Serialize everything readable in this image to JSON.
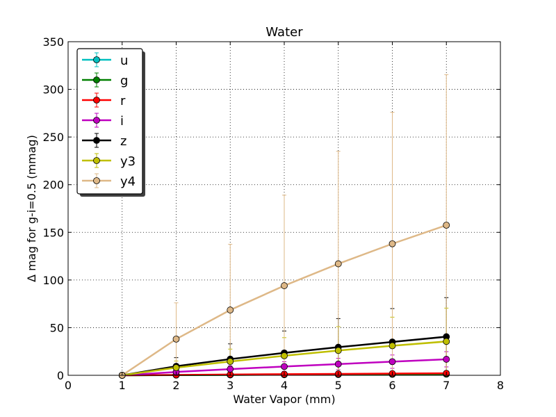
{
  "chart_data": {
    "type": "line",
    "title": "Water",
    "xlabel": "Water Vapor (mm)",
    "ylabel": "Δ mag for g-i=0.5 (mmag)",
    "xlim": [
      0,
      8
    ],
    "ylim": [
      0,
      350
    ],
    "xticks": [
      0,
      1,
      2,
      3,
      4,
      5,
      6,
      7,
      8
    ],
    "yticks": [
      0,
      50,
      100,
      150,
      200,
      250,
      300,
      350
    ],
    "grid": true,
    "legend_position": "top-left",
    "x": [
      1,
      2,
      3,
      4,
      5,
      6,
      7
    ],
    "series": [
      {
        "name": "u",
        "color": "#00bfbf",
        "values": [
          0,
          0.3,
          0.5,
          0.7,
          0.9,
          1.1,
          1.3
        ],
        "err": [
          0,
          0.5,
          0.8,
          1.0,
          1.2,
          1.4,
          1.6
        ]
      },
      {
        "name": "g",
        "color": "#008000",
        "values": [
          0,
          0.2,
          0.4,
          0.6,
          0.8,
          1.0,
          1.2
        ],
        "err": [
          0,
          0.3,
          0.5,
          0.6,
          0.7,
          0.8,
          0.9
        ]
      },
      {
        "name": "r",
        "color": "#ff0000",
        "values": [
          0,
          0.4,
          0.8,
          1.2,
          1.5,
          1.8,
          2.1
        ],
        "err": [
          0,
          0.5,
          0.8,
          1.0,
          1.2,
          1.4,
          1.6
        ]
      },
      {
        "name": "i",
        "color": "#bf00bf",
        "values": [
          0,
          3.5,
          6.5,
          9.2,
          11.8,
          14.3,
          16.8
        ],
        "err": [
          0,
          2,
          3.5,
          5,
          6,
          7,
          8
        ]
      },
      {
        "name": "z",
        "color": "#000000",
        "values": [
          0,
          9.5,
          17,
          23.5,
          29.5,
          35,
          40.5
        ],
        "err": [
          0,
          9,
          16,
          23,
          30,
          35,
          41
        ]
      },
      {
        "name": "y3",
        "color": "#bfbf00",
        "values": [
          0,
          8,
          14.5,
          20.5,
          26,
          31,
          35.5
        ],
        "err": [
          0,
          7,
          13,
          19,
          25,
          30,
          35
        ]
      },
      {
        "name": "y4",
        "color": "#deb887",
        "values": [
          0,
          38,
          68.5,
          94,
          117,
          138,
          157.5
        ],
        "err": [
          0,
          38,
          69,
          95,
          118,
          138,
          158
        ]
      }
    ]
  }
}
